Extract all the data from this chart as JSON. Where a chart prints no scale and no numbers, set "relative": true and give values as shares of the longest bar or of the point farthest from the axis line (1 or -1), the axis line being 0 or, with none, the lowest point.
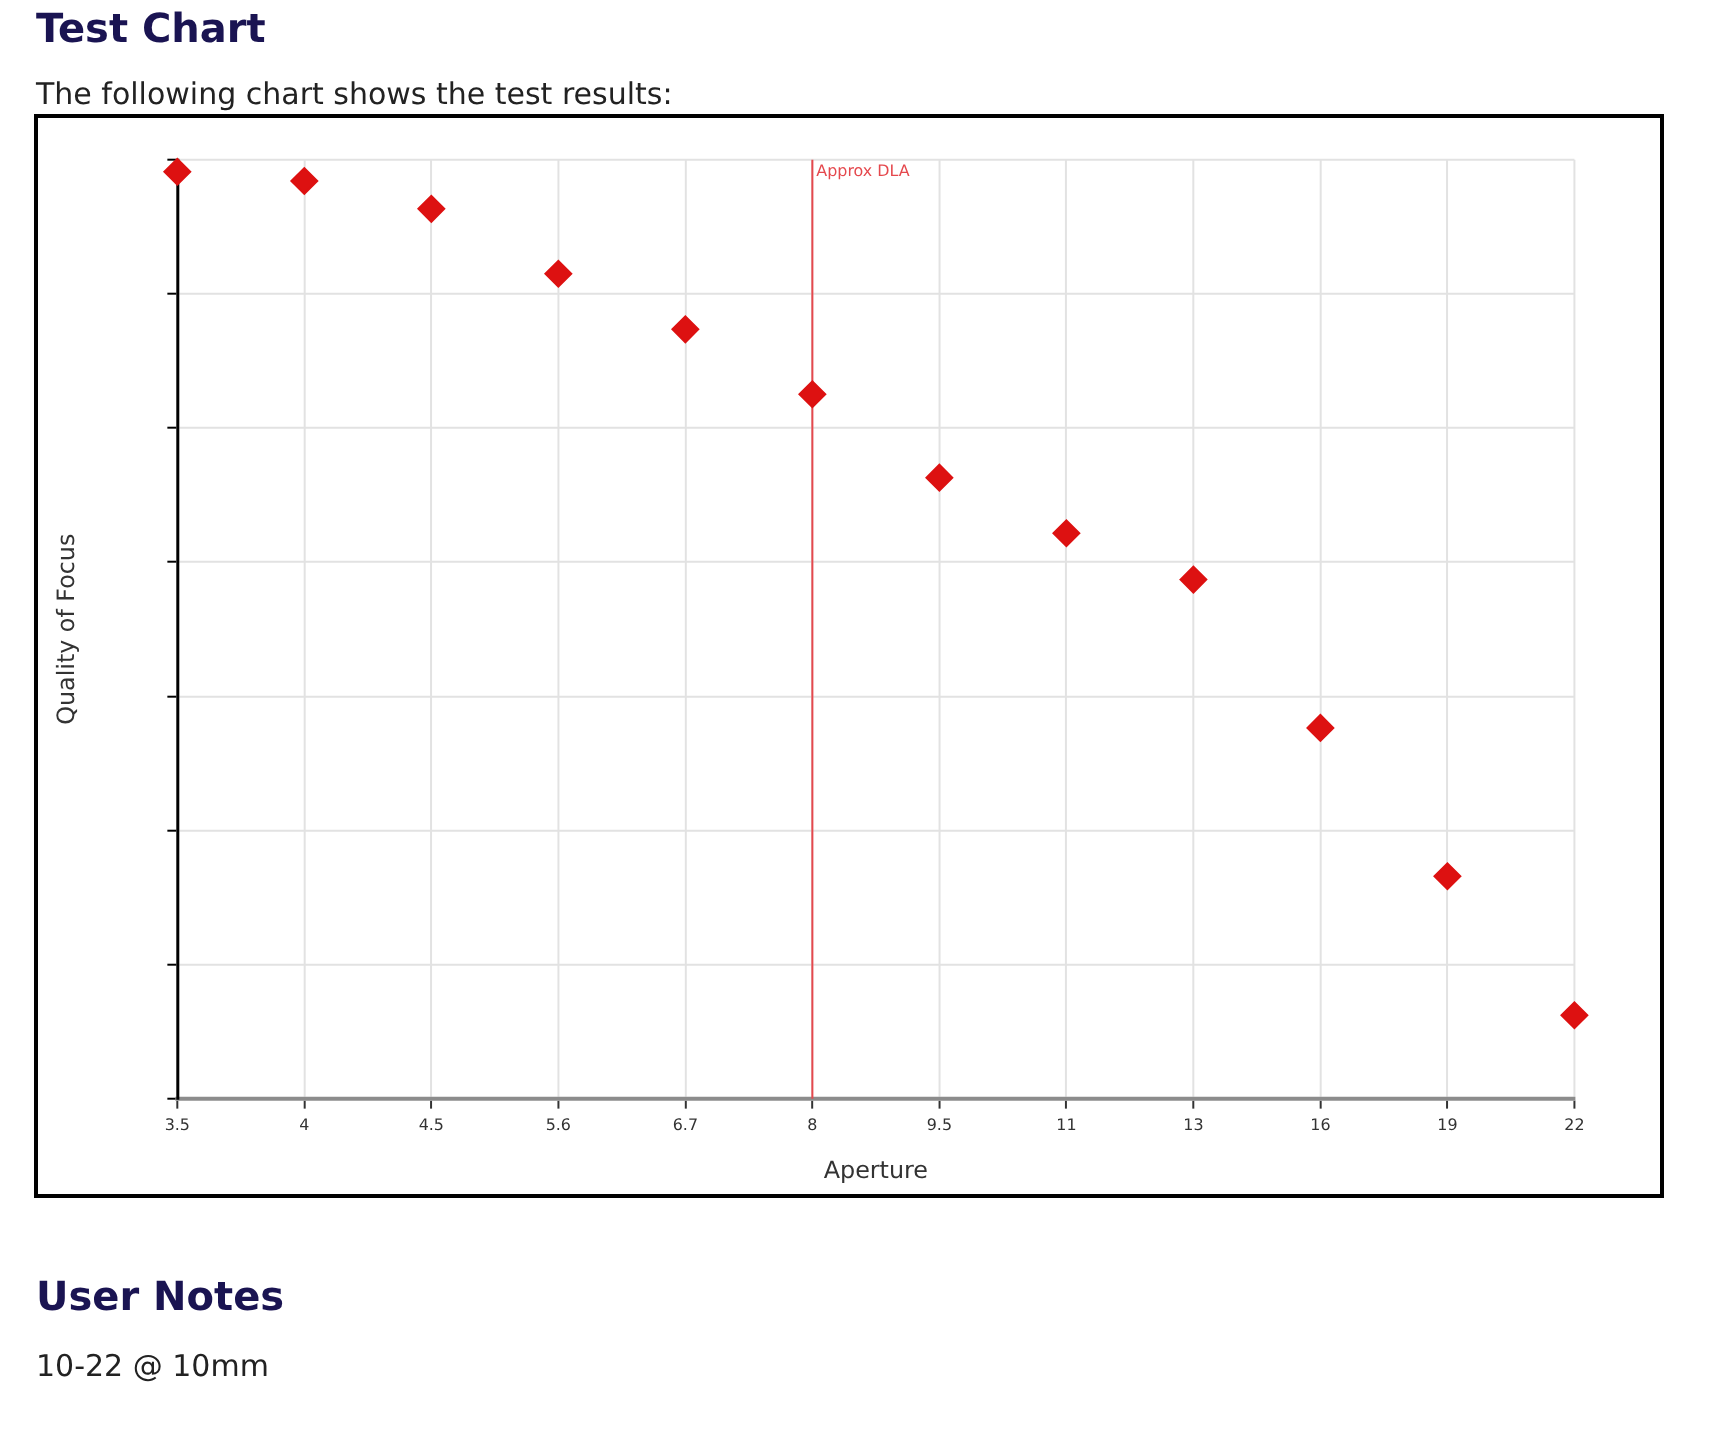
{
  "chart_data": {
    "type": "scatter",
    "title": "Test Chart",
    "subtitle": "The following chart shows the test results:",
    "xlabel": "Aperture",
    "ylabel": "Quality of Focus",
    "annotations": [
      "User Notes",
      "10-22 @ 10mm"
    ],
    "categories": [
      "3.5",
      "4",
      "4.5",
      "5.6",
      "6.7",
      "8",
      "9.5",
      "11",
      "13",
      "16",
      "19",
      "22"
    ],
    "values": [
      1,
      0.99,
      0.96,
      0.89,
      0.83,
      0.76,
      0.67,
      0.61,
      0.56,
      0.4,
      0.24,
      0.09
    ],
    "color": "#dd1111",
    "relative": true,
    "marker": "diamond",
    "grid": true,
    "legend": false,
    "tick_labels": "x",
    "ref_lines": [
      {
        "axis": "x",
        "value": "8",
        "label": "Approx DLA",
        "color": "#e5484d"
      }
    ]
  }
}
